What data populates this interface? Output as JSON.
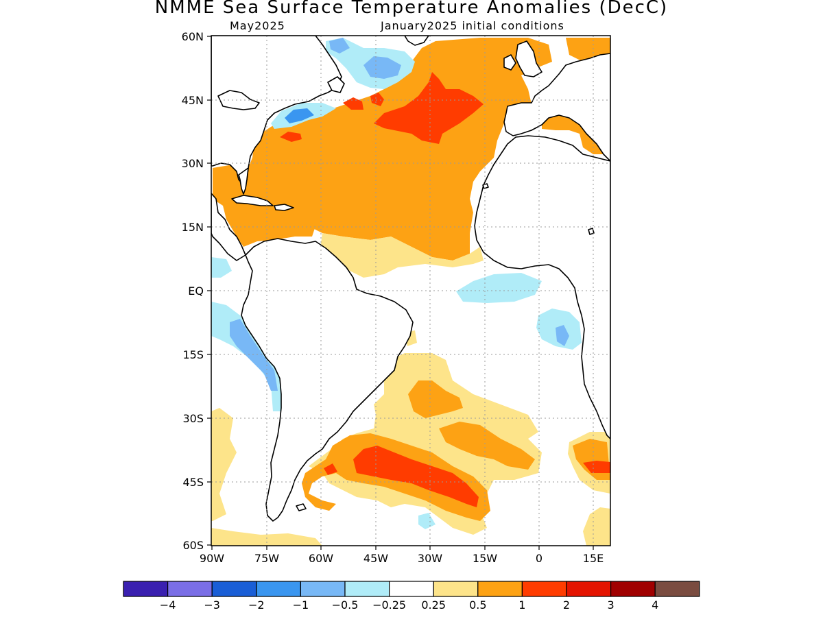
{
  "title": "NMME Sea Surface Temperature Anomalies (DecC)",
  "subtitle_left": "May2025",
  "subtitle_right": "January2025 initial conditions",
  "lat_labels": [
    "60N",
    "45N",
    "30N",
    "15N",
    "EQ",
    "15S",
    "30S",
    "45S",
    "60S"
  ],
  "lon_labels": [
    "90W",
    "75W",
    "60W",
    "45W",
    "30W",
    "15W",
    "0",
    "15E"
  ],
  "colorbar": {
    "colors": [
      "#3a20b0",
      "#7a6ee6",
      "#1a5ed6",
      "#3a96f0",
      "#78b8f6",
      "#b0ecf8",
      "#ffffff",
      "#fde48a",
      "#fda214",
      "#ff3c00",
      "#e41400",
      "#a00000",
      "#7a4c40"
    ],
    "labels": [
      "−4",
      "−3",
      "−2",
      "−1",
      "−0.5",
      "−0.25",
      "0.25",
      "0.5",
      "1",
      "2",
      "3",
      "4"
    ]
  },
  "colors": {
    "land": "#ffffff",
    "coast": "#000000",
    "grid": "#9a9a9a"
  }
}
